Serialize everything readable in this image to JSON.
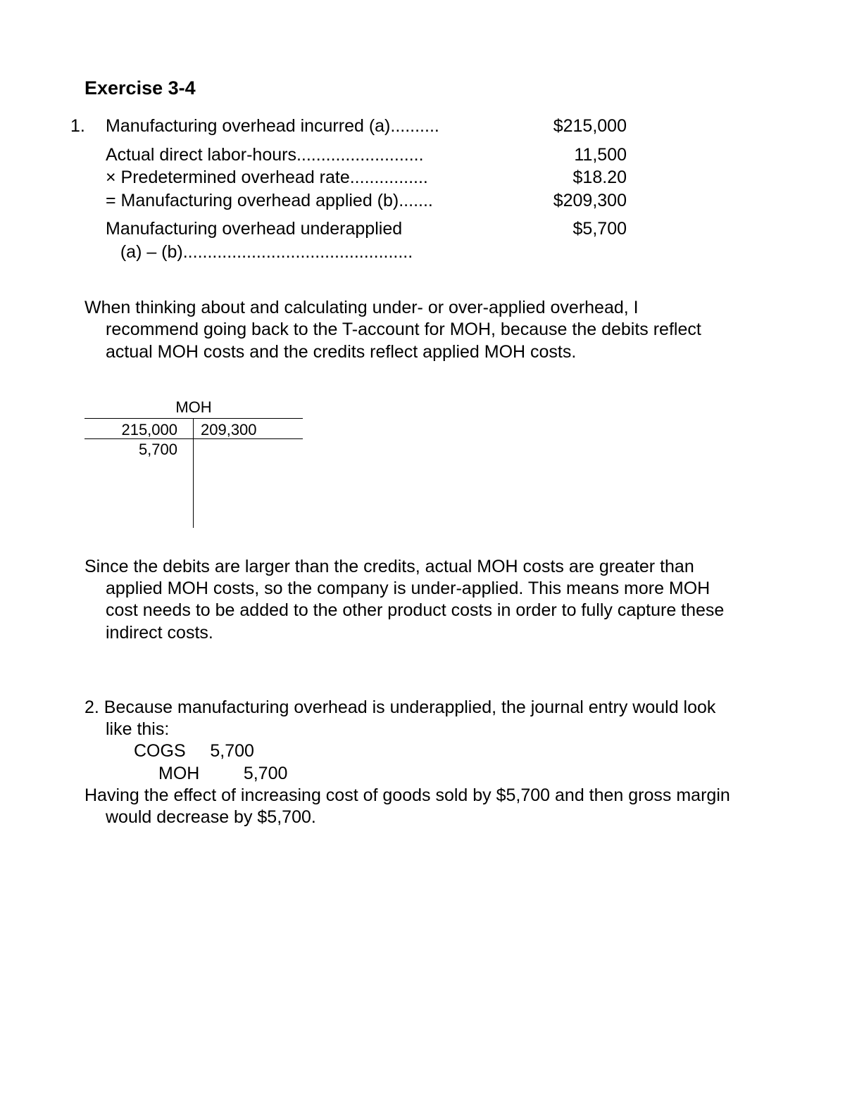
{
  "title": "Exercise 3-4",
  "part1": {
    "number": "1.",
    "lines": [
      {
        "label": "Manufacturing overhead incurred (a)..........",
        "value": "$215,000"
      }
    ],
    "group2": [
      {
        "label": "Actual direct labor-hours..........................",
        "value": "11,500"
      },
      {
        "label": "× Predetermined overhead rate................",
        "value": "$18.20"
      },
      {
        "label": "= Manufacturing overhead applied (b).......",
        "value": "$209,300"
      }
    ],
    "group3": [
      {
        "label": "Manufacturing overhead underapplied",
        "value": ""
      },
      {
        "label": "   (a) – (b)...............................................",
        "value": "$5,700"
      }
    ]
  },
  "para1": "When thinking about and calculating under- or over-applied overhead, I recommend going back to the T-account for MOH, because the debits reflect actual MOH costs and the credits reflect applied MOH costs.",
  "taccount": {
    "title": "MOH",
    "debit1": "215,000",
    "debit2": "5,700",
    "credit1": "209,300"
  },
  "para2": "Since the debits are larger than the credits, actual MOH costs are greater than applied MOH costs, so the company is under-applied. This means more MOH cost needs to be added to the other product costs in order to fully capture these indirect costs.",
  "part2": {
    "intro": "2. Because manufacturing overhead is underapplied, the journal entry would look like this:",
    "j1": "COGS     5,700",
    "j2": "MOH         5,700",
    "effect": "Having the effect of increasing cost of goods sold by $5,700 and then gross margin would decrease by $5,700."
  }
}
